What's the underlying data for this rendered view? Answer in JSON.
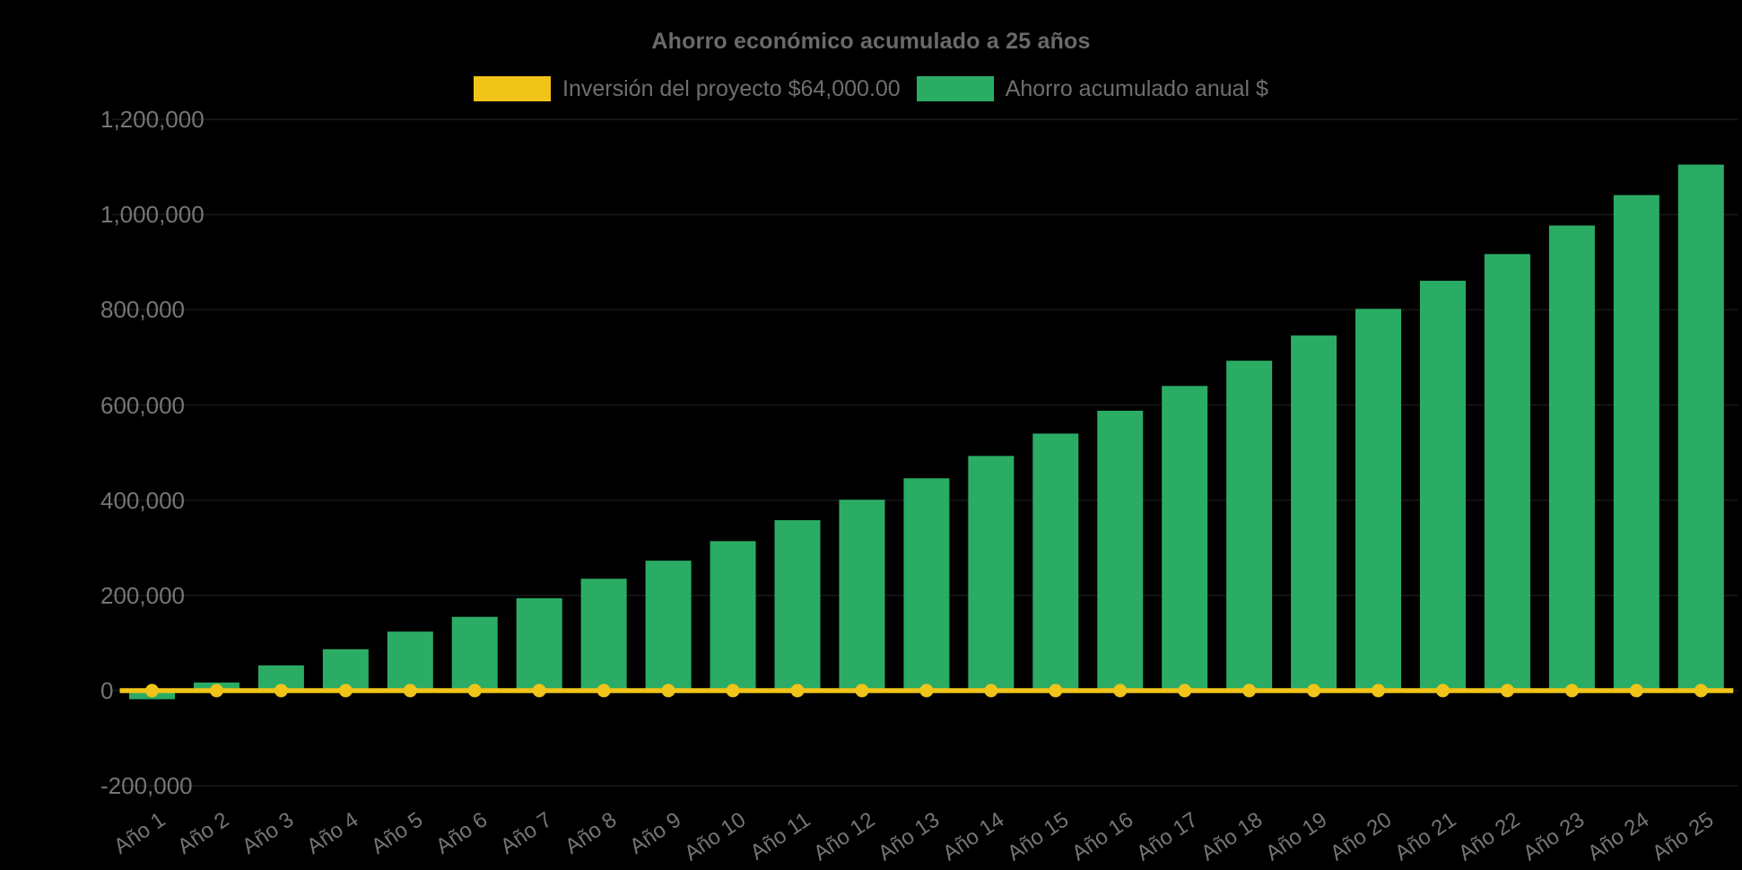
{
  "chart": {
    "title": "Ahorro económico acumulado a 25 años",
    "legend": [
      {
        "label": "Inversión del proyecto $64,000.00",
        "color": "#F0C419"
      },
      {
        "label": "Ahorro acumulado anual $",
        "color": "#2BAC64"
      }
    ]
  },
  "colors": {
    "background": "#000000",
    "bar_green": "#2BAC64",
    "line_yellow": "#F0C419",
    "title_text": "#6A6A6A",
    "axis_text": "#757575",
    "legend_text": "#6E6E6E",
    "gridline": "#141414"
  },
  "chart_data": {
    "type": "bar",
    "title": "Ahorro económico acumulado a 25 años",
    "xlabel": "",
    "ylabel": "",
    "ylim": [
      -200000,
      1200000
    ],
    "ytick_step": 200000,
    "ytick_labels": [
      "-200,000",
      "0",
      "200,000",
      "400,000",
      "600,000",
      "800,000",
      "1,000,000",
      "1,200,000"
    ],
    "grid": "horizontal, near-invisible dark gray on black background",
    "legend_position": "top-center",
    "categories": [
      "Año 1",
      "Año 2",
      "Año 3",
      "Año 4",
      "Año 5",
      "Año 6",
      "Año 7",
      "Año 8",
      "Año 9",
      "Año 10",
      "Año 11",
      "Año 12",
      "Año 13",
      "Año 14",
      "Año 15",
      "Año 16",
      "Año 17",
      "Año 18",
      "Año 19",
      "Año 20",
      "Año 21",
      "Año 22",
      "Año 23",
      "Año 24",
      "Año 25"
    ],
    "series": [
      {
        "name": "Ahorro acumulado anual $",
        "type": "bar",
        "color": "#2BAC64",
        "values": [
          -18000,
          17000,
          53000,
          87000,
          124000,
          155000,
          194000,
          235000,
          273000,
          314000,
          358000,
          401000,
          446000,
          493000,
          540000,
          588000,
          640000,
          693000,
          746000,
          802000,
          861000,
          917000,
          977000,
          1041000,
          1105000
        ]
      },
      {
        "name": "Inversión del proyecto $64,000.00",
        "type": "line",
        "color": "#F0C419",
        "point_style": "circle",
        "stated_investment_value": 64000,
        "plotted_values": [
          0,
          0,
          0,
          0,
          0,
          0,
          0,
          0,
          0,
          0,
          0,
          0,
          0,
          0,
          0,
          0,
          0,
          0,
          0,
          0,
          0,
          0,
          0,
          0,
          0
        ]
      }
    ]
  }
}
